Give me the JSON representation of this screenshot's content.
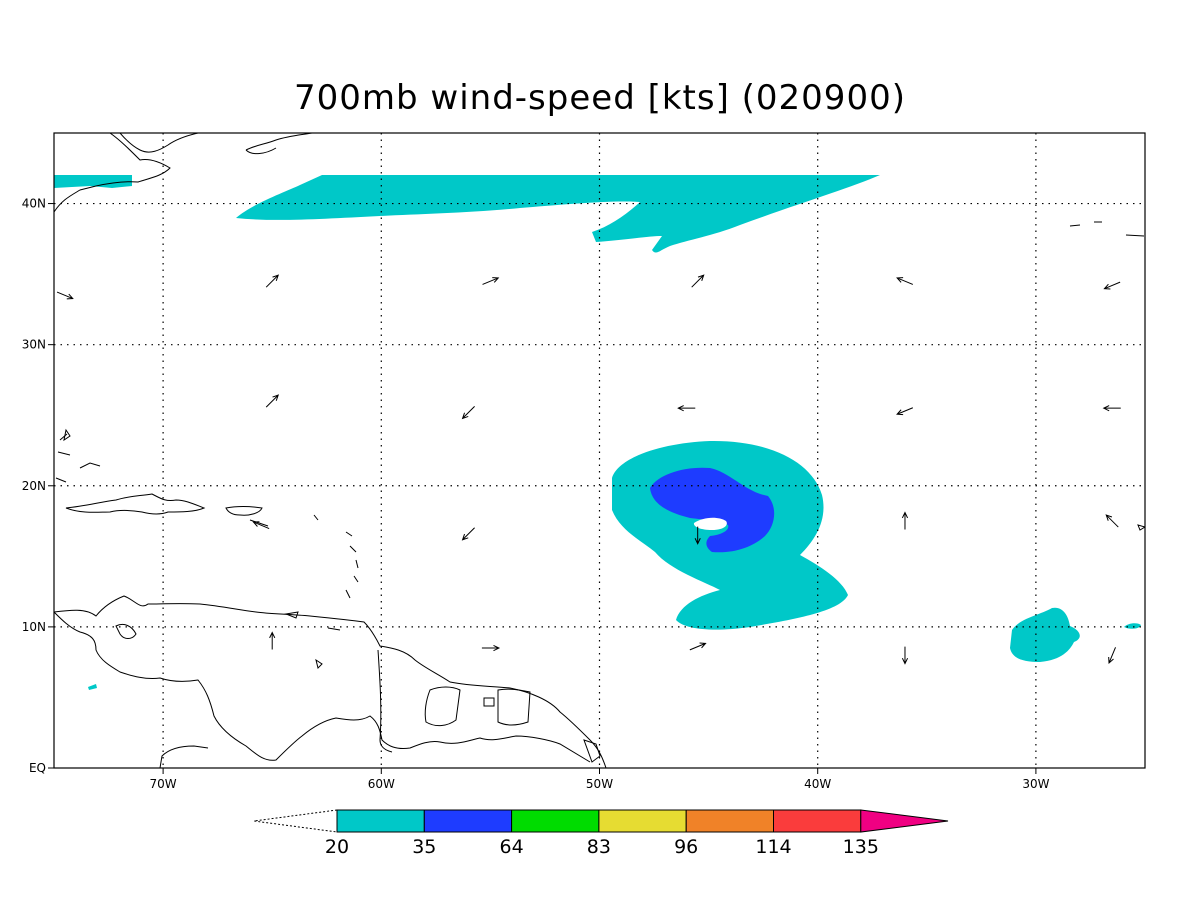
{
  "title": "700mb wind-speed [kts] (020900)",
  "map": {
    "lon_range": [
      -75,
      -25
    ],
    "lat_range": [
      0,
      45
    ],
    "lon_ticks": [
      {
        "value": -70,
        "label": "70W"
      },
      {
        "value": -60,
        "label": "60W"
      },
      {
        "value": -50,
        "label": "50W"
      },
      {
        "value": -40,
        "label": "40W"
      },
      {
        "value": -30,
        "label": "30W"
      }
    ],
    "lat_ticks": [
      {
        "value": 0,
        "label": "EQ"
      },
      {
        "value": 10,
        "label": "10N"
      },
      {
        "value": 20,
        "label": "20N"
      },
      {
        "value": 30,
        "label": "30N"
      },
      {
        "value": 40,
        "label": "40N"
      }
    ],
    "grid": "dotted"
  },
  "colorbar": {
    "labels": [
      "20",
      "35",
      "64",
      "83",
      "96",
      "114",
      "135"
    ],
    "colors": [
      "#00c8c8",
      "#1e3cff",
      "#00dc00",
      "#e6dc32",
      "#f08228",
      "#fa3c3c",
      "#f00082"
    ]
  },
  "wind_vectors": [
    {
      "lon": -65,
      "lat": 34.5,
      "dir": "ne"
    },
    {
      "lon": -55,
      "lat": 34.5,
      "dir": "ene"
    },
    {
      "lon": -45.5,
      "lat": 34.5,
      "dir": "ne"
    },
    {
      "lon": -36,
      "lat": 34.5,
      "dir": "wnw"
    },
    {
      "lon": -26.5,
      "lat": 34.2,
      "dir": "wsw"
    },
    {
      "lon": -74.5,
      "lat": 33.5,
      "dir": "ese"
    },
    {
      "lon": -65,
      "lat": 26,
      "dir": "ne"
    },
    {
      "lon": -56,
      "lat": 25.2,
      "dir": "sw"
    },
    {
      "lon": -46,
      "lat": 25.5,
      "dir": "w"
    },
    {
      "lon": -36,
      "lat": 25.3,
      "dir": "wsw"
    },
    {
      "lon": -26.5,
      "lat": 25.5,
      "dir": "w"
    },
    {
      "lon": -65.5,
      "lat": 17.2,
      "dir": "wnw"
    },
    {
      "lon": -56,
      "lat": 16.6,
      "dir": "sw"
    },
    {
      "lon": -45.5,
      "lat": 16.5,
      "dir": "s"
    },
    {
      "lon": -36,
      "lat": 17.5,
      "dir": "n"
    },
    {
      "lon": -26.5,
      "lat": 17.5,
      "dir": "nw"
    },
    {
      "lon": -65,
      "lat": 9,
      "dir": "n"
    },
    {
      "lon": -55,
      "lat": 8.5,
      "dir": "e"
    },
    {
      "lon": -45.5,
      "lat": 8.6,
      "dir": "ene"
    },
    {
      "lon": -36,
      "lat": 8,
      "dir": "s"
    },
    {
      "lon": -26.5,
      "lat": 8,
      "dir": "ssw"
    }
  ]
}
